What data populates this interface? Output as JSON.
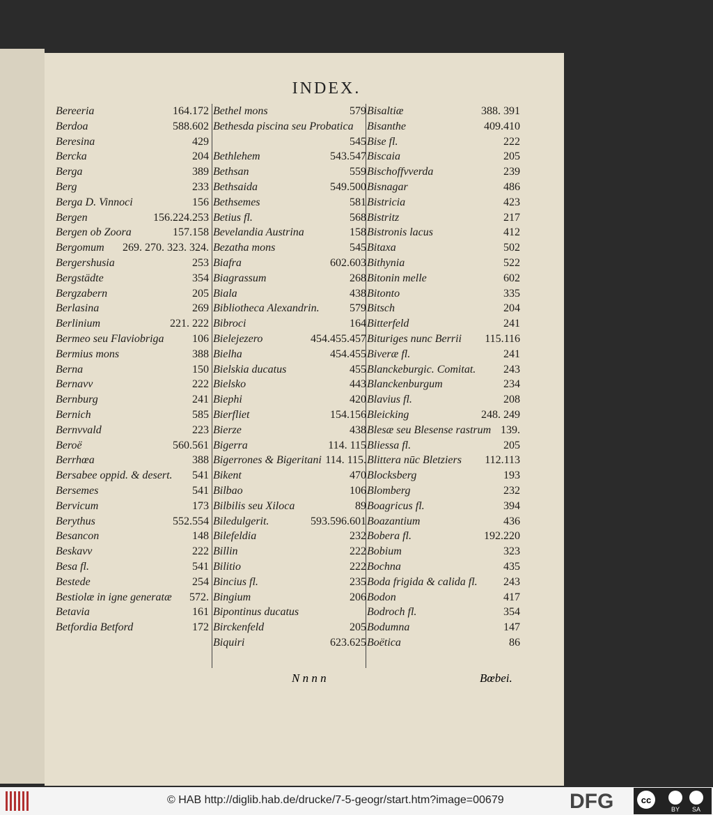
{
  "header": {
    "title": "INDEX."
  },
  "columns": [
    {
      "entries": [
        {
          "name": "Bereeria",
          "pages": "164.172"
        },
        {
          "name": "Berdoa",
          "pages": "588.602"
        },
        {
          "name": "Beresina",
          "pages": "429"
        },
        {
          "name": "Bercka",
          "pages": "204"
        },
        {
          "name": "Berga",
          "pages": "389"
        },
        {
          "name": "Berg",
          "pages": "233"
        },
        {
          "name": "Berga D. Vinnoci",
          "pages": "156"
        },
        {
          "name": "Bergen",
          "pages": "156.224.253"
        },
        {
          "name": "Bergen ob Zoora",
          "pages": "157.158"
        },
        {
          "name": "Bergomum",
          "pages": "269. 270. 323. 324."
        },
        {
          "name": "Bergershusia",
          "pages": "253"
        },
        {
          "name": "Bergstädte",
          "pages": "354"
        },
        {
          "name": "Bergzabern",
          "pages": "205"
        },
        {
          "name": "Berlasina",
          "pages": "269"
        },
        {
          "name": "Berlinium",
          "pages": "221. 222"
        },
        {
          "name": "Bermeo seu Flaviobriga",
          "pages": "106"
        },
        {
          "name": "Bermius mons",
          "pages": "388"
        },
        {
          "name": "Berna",
          "pages": "150"
        },
        {
          "name": "Bernavv",
          "pages": "222"
        },
        {
          "name": "Bernburg",
          "pages": "241"
        },
        {
          "name": "Bernich",
          "pages": "585"
        },
        {
          "name": "Bernvvald",
          "pages": "223"
        },
        {
          "name": "Beroë",
          "pages": "560.561"
        },
        {
          "name": "Berrhœa",
          "pages": "388"
        },
        {
          "name": "Bersabee oppid. & desert.",
          "pages": "541"
        },
        {
          "name": "Bersemes",
          "pages": "541"
        },
        {
          "name": "Bervicum",
          "pages": "173"
        },
        {
          "name": "Berythus",
          "pages": "552.554"
        },
        {
          "name": "Besancon",
          "pages": "148"
        },
        {
          "name": "Beskavv",
          "pages": "222"
        },
        {
          "name": "Besa fl.",
          "pages": "541"
        },
        {
          "name": "Bestede",
          "pages": "254"
        },
        {
          "name": "Bestiolæ in igne generatæ",
          "pages": "572."
        },
        {
          "name": "Betavia",
          "pages": "161"
        },
        {
          "name": "Betfordia Betford",
          "pages": "172"
        }
      ]
    },
    {
      "entries": [
        {
          "name": "Bethel mons",
          "pages": "579"
        },
        {
          "name": "Bethesda piscina seu Probatica",
          "pages": "545"
        },
        {
          "name": "Bethlehem",
          "pages": "543.547"
        },
        {
          "name": "Bethsan",
          "pages": "559"
        },
        {
          "name": "Bethsaida",
          "pages": "549.500"
        },
        {
          "name": "Bethsemes",
          "pages": "581"
        },
        {
          "name": "Betius fl.",
          "pages": "568"
        },
        {
          "name": "Bevelandia Austrina",
          "pages": "158"
        },
        {
          "name": "Bezatha mons",
          "pages": "545"
        },
        {
          "name": "Biafra",
          "pages": "602.603"
        },
        {
          "name": "Biagrassum",
          "pages": "268"
        },
        {
          "name": "Biala",
          "pages": "438"
        },
        {
          "name": "Bibliotheca Alexandrin.",
          "pages": "579"
        },
        {
          "name": "Bibroci",
          "pages": "164"
        },
        {
          "name": "Bielejezero",
          "pages": "454.455.457"
        },
        {
          "name": "Bielha",
          "pages": "454.455"
        },
        {
          "name": "Bielskia ducatus",
          "pages": "455"
        },
        {
          "name": "Bielsko",
          "pages": "443"
        },
        {
          "name": "Biephi",
          "pages": "420"
        },
        {
          "name": "Bierfliet",
          "pages": "154.156"
        },
        {
          "name": "Bierze",
          "pages": "438"
        },
        {
          "name": "Bigerra",
          "pages": "114. 115"
        },
        {
          "name": "Bigerrones & Bigeritani",
          "pages": "114. 115."
        },
        {
          "name": "Bikent",
          "pages": "470"
        },
        {
          "name": "Bilbao",
          "pages": "106"
        },
        {
          "name": "Bilbilis seu Xiloca",
          "pages": "89"
        },
        {
          "name": "Biledulgerit.",
          "pages": "593.596.601"
        },
        {
          "name": "Bilefeldia",
          "pages": "232"
        },
        {
          "name": "Billin",
          "pages": "222"
        },
        {
          "name": "Bilitio",
          "pages": "222"
        },
        {
          "name": "Bincius fl.",
          "pages": "235"
        },
        {
          "name": "Bingium",
          "pages": "206"
        },
        {
          "name": "Bipontinus ducatus"
        },
        {
          "name": "Birckenfeld",
          "pages": "205"
        },
        {
          "name": "Biquiri",
          "pages": "623.625"
        }
      ]
    },
    {
      "entries": [
        {
          "name": "Bisaltiæ",
          "pages": "388. 391"
        },
        {
          "name": "Bisanthe",
          "pages": "409.410"
        },
        {
          "name": "Bise fl.",
          "pages": "222"
        },
        {
          "name": "Biscaia",
          "pages": "205"
        },
        {
          "name": "Bischoffvverda",
          "pages": "239"
        },
        {
          "name": "Bisnagar",
          "pages": "486"
        },
        {
          "name": "Bistricia",
          "pages": "423"
        },
        {
          "name": "Bistritz",
          "pages": "217"
        },
        {
          "name": "Bistronis lacus",
          "pages": "412"
        },
        {
          "name": "Bitaxa",
          "pages": "502"
        },
        {
          "name": "Bithynia",
          "pages": "522"
        },
        {
          "name": "Bitonin melle",
          "pages": "602"
        },
        {
          "name": "Bitonto",
          "pages": "335"
        },
        {
          "name": "Bitsch",
          "pages": "204"
        },
        {
          "name": "Bitterfeld",
          "pages": "241"
        },
        {
          "name": "Bituriges nunc Berrii",
          "pages": "115.116"
        },
        {
          "name": "Biveræ fl.",
          "pages": "241"
        },
        {
          "name": "Blanckeburgic. Comitat.",
          "pages": "243"
        },
        {
          "name": "Blanckenburgum",
          "pages": "234"
        },
        {
          "name": "Blavius fl.",
          "pages": "208"
        },
        {
          "name": "Bleicking",
          "pages": "248. 249"
        },
        {
          "name": "Blesæ seu Blesense rastrum",
          "pages": "139."
        },
        {
          "name": "Bliessa fl.",
          "pages": "205"
        },
        {
          "name": "Blittera nūc Bletziers",
          "pages": "112.113"
        },
        {
          "name": "Blocksberg",
          "pages": "193"
        },
        {
          "name": "Blomberg",
          "pages": "232"
        },
        {
          "name": "Boagricus fl.",
          "pages": "394"
        },
        {
          "name": "Boazantium",
          "pages": "436"
        },
        {
          "name": "Bobera fl.",
          "pages": "192.220"
        },
        {
          "name": "Bobium",
          "pages": "323"
        },
        {
          "name": "Bochna",
          "pages": "435"
        },
        {
          "name": "Boda frigida & calida fl.",
          "pages": "243"
        },
        {
          "name": "Bodon",
          "pages": "417"
        },
        {
          "name": "Bodroch fl.",
          "pages": "354"
        },
        {
          "name": "Bodumna",
          "pages": "147"
        },
        {
          "name": "Boëtica",
          "pages": "86"
        }
      ]
    }
  ],
  "footer": {
    "signature": "N n n n",
    "catchword": "Bœbei."
  },
  "viewer": {
    "credit": "© HAB http://diglib.hab.de/drucke/7-5-geogr/start.htm?image=00679",
    "logo": "DFG",
    "license": [
      "BY",
      "SA"
    ]
  }
}
